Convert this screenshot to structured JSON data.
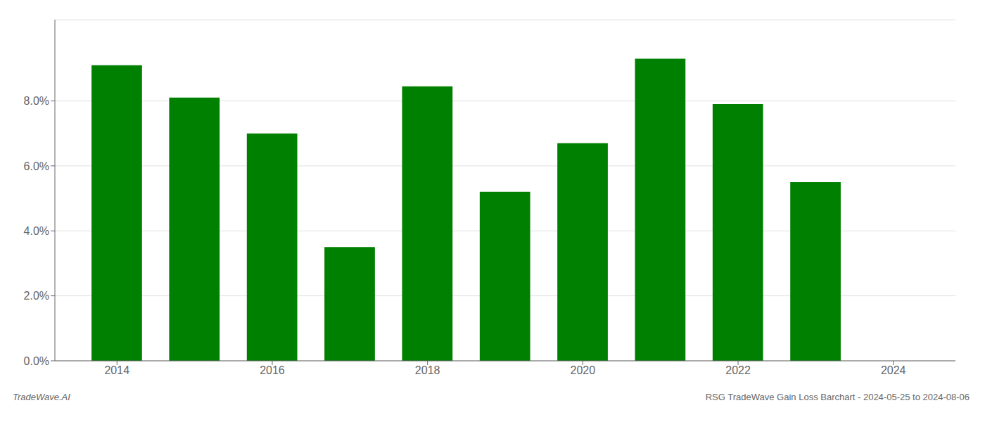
{
  "chart_data": {
    "type": "bar",
    "x": [
      2014,
      2015,
      2016,
      2017,
      2018,
      2019,
      2020,
      2021,
      2022,
      2023
    ],
    "values": [
      0.091,
      0.081,
      0.07,
      0.035,
      0.0845,
      0.052,
      0.067,
      0.093,
      0.079,
      0.055
    ],
    "color": "#008000",
    "xlim": [
      2013.2,
      2024.8
    ],
    "xticks": [
      2014,
      2016,
      2018,
      2020,
      2022,
      2024
    ],
    "ylim": [
      0,
      0.105
    ],
    "yticks": [
      {
        "value": 0.0,
        "label": "0.0%"
      },
      {
        "value": 0.02,
        "label": "2.0%"
      },
      {
        "value": 0.04,
        "label": "4.0%"
      },
      {
        "value": 0.06,
        "label": "6.0%"
      },
      {
        "value": 0.08,
        "label": "8.0%"
      }
    ],
    "grid": true,
    "annotations": [
      "TradeWave.AI",
      "RSG TradeWave Gain Loss Barchart - 2024-05-25 to 2024-08-06"
    ]
  }
}
